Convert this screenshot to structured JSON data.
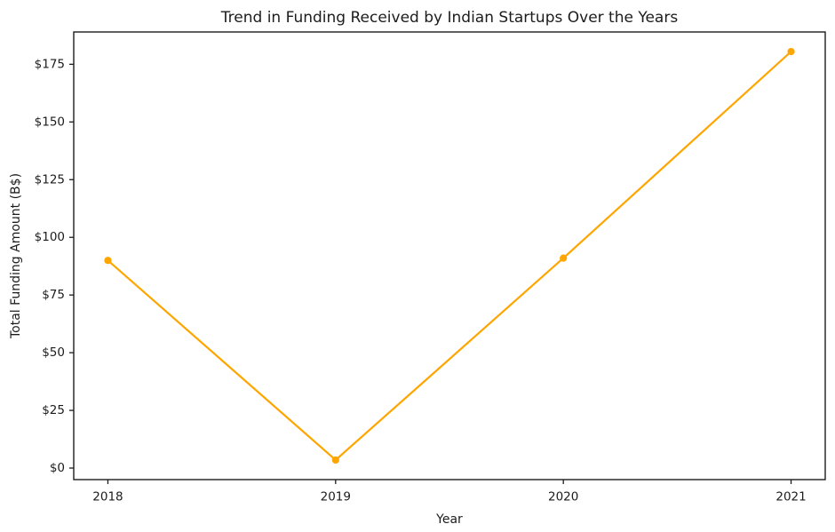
{
  "figure": {
    "background": "#ffffff"
  },
  "chart_data": {
    "type": "line",
    "title": "Trend in Funding Received by Indian Startups Over the Years",
    "xlabel": "Year",
    "ylabel": "Total Funding Amount (B$)",
    "x": [
      2018,
      2019,
      2020,
      2021
    ],
    "series": [
      {
        "name": "Total Funding Amount",
        "values": [
          90,
          3.5,
          91,
          180.5
        ],
        "color": "#FFA500",
        "marker": "circle"
      }
    ],
    "xlim": [
      2017.85,
      2021.15
    ],
    "ylim": [
      -5,
      189
    ],
    "xticks": [
      2018,
      2019,
      2020,
      2021
    ],
    "xtick_labels": [
      "2018",
      "2019",
      "2020",
      "2021"
    ],
    "yticks": [
      0,
      25,
      50,
      75,
      100,
      125,
      150,
      175
    ],
    "ytick_labels": [
      "$0",
      "$25",
      "$50",
      "$75",
      "$100",
      "$125",
      "$150",
      "$175"
    ],
    "grid": false,
    "legend": "none",
    "colors": {
      "line": "#FFA500",
      "marker": "#FFA500",
      "text": "#1c1c1c",
      "spine": "#1c1c1c",
      "background": "#ffffff"
    }
  }
}
